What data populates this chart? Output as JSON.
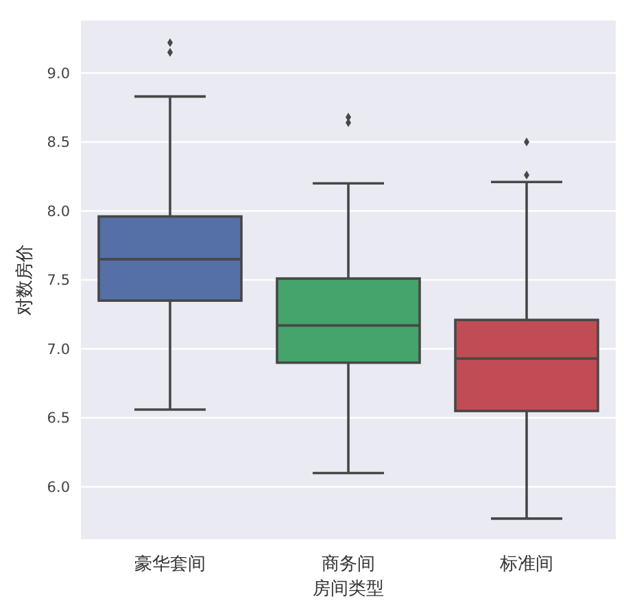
{
  "chart_data": {
    "type": "box",
    "xlabel": "房间类型",
    "ylabel": "对数房价",
    "categories": [
      "豪华套间",
      "商务间",
      "标准间"
    ],
    "boxes": [
      {
        "low": 6.56,
        "q1": 7.35,
        "median": 7.65,
        "q3": 7.96,
        "high": 8.83,
        "outliers": [
          9.22,
          9.15
        ]
      },
      {
        "low": 6.1,
        "q1": 6.9,
        "median": 7.17,
        "q3": 7.51,
        "high": 8.2,
        "outliers": [
          8.68,
          8.64
        ]
      },
      {
        "low": 5.77,
        "q1": 6.55,
        "median": 6.93,
        "q3": 7.21,
        "high": 8.21,
        "outliers": [
          8.5,
          8.26
        ]
      }
    ],
    "colors": [
      "#5470a6",
      "#45a46c",
      "#c24c55"
    ],
    "ylim": [
      5.62,
      9.38
    ],
    "yticks": [
      {
        "value": 6,
        "label": "6.0"
      },
      6.5,
      {
        "value": 7,
        "label": "7.0"
      },
      7.5,
      {
        "value": 8,
        "label": "8.0"
      },
      8.5,
      {
        "value": 9,
        "label": "9.0"
      }
    ],
    "grid": "y"
  }
}
